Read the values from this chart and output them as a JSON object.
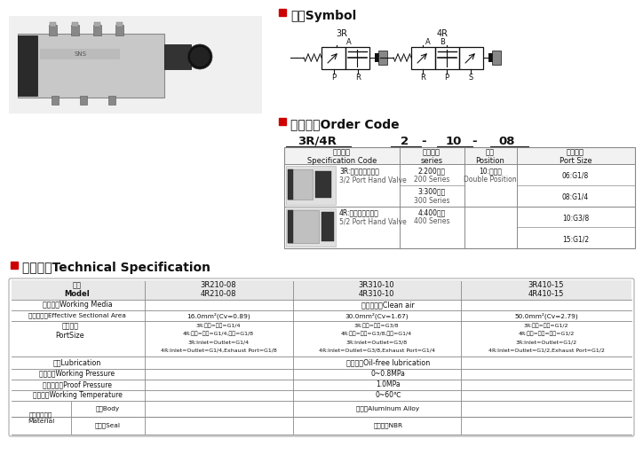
{
  "bg_color": "#ffffff",
  "red_color": "#cc0000",
  "border_color": "#aaaaaa",
  "line_color": "#888888",
  "header_bg": "#e8e8e8",
  "title_symbol": "符号Symbol",
  "title_order": "订货型号Order Code",
  "title_spec": "技术参数Technical Specification",
  "order_label": "3R/4R",
  "order_n1": "2",
  "order_n2": "10",
  "order_n3": "08",
  "oh1": "规格代号\nSpecification Code",
  "oh2": "系列代号\nseries",
  "oh3": "位数\nPosition",
  "oh4": "接管口径\nPort Size",
  "r1_cn": "3R:二位三通手拉阀",
  "r1_en": "3/2 Port Hand Valve",
  "r1_s1": "2:200系列",
  "r1_s1e": "200 Series",
  "r1_s2": "3:300系列",
  "r1_s2e": "300 Series",
  "r1_pos_cn": "10:双位置",
  "r1_pos_en": "Double Position",
  "r1_ports": [
    "06:G1/8",
    "08:G1/4",
    "10:G3/8",
    "15:G1/2"
  ],
  "r2_cn": "4R:二位五通手拉阀",
  "r2_en": "5/2 Port Hand Valve",
  "r2_s1": "4:400系列",
  "r2_s1e": "400 Series",
  "sym_3r": "3R",
  "sym_4r": "4R",
  "sym_A": "A",
  "sym_A2": "A",
  "sym_B": "B",
  "sym_P": "P",
  "sym_R": "R",
  "sym_R2": "R",
  "sym_P2": "P",
  "sym_S": "S",
  "spec_h0": "型号\nModel",
  "spec_h1": "3R210-08\n4R210-08",
  "spec_h2": "3R310-10\n4R310-10",
  "spec_h3": "3R410-15\n4R410-15",
  "wm_label": "工作介质Working Media",
  "wm_val": "清净的空气Clean air",
  "ea_label": "有效截面积Effective Sectional Area",
  "ea_v1": "16.0mm²(Cv=0.89)",
  "ea_v2": "30.0mm²(Cv=1.67)",
  "ea_v3": "50.0mm²(Cv=2.79)",
  "ps_cn": "接管口径",
  "ps_en": "PortSize",
  "ps_c1l1": "3R:进气=出气=G1/4",
  "ps_c1l2": "4R:进气=出气=G1/4,排气=G1/8",
  "ps_c1l3": "3R:Inlet=Outlet=G1/4",
  "ps_c1l4": "4R:Inlet=Outlet=G1/4,Exhaust Port=G1/8",
  "ps_c2l1": "3R:进气=出气=G3/8",
  "ps_c2l2": "4R:进气=出气=G3/8,排气=G1/4",
  "ps_c2l3": "3R:Inlet=Outlet=G3/8",
  "ps_c2l4": "4R:Inlet=Outlet=G3/8,Exhaust Port=G1/4",
  "ps_c3l1": "3R:进气=出气=G1/2",
  "ps_c3l2": "4R:进气=出气=排气=G1/2",
  "ps_c3l3": "3R:Inlet=Outlet=G1/2",
  "ps_c3l4": "4R:Inlet=Outlet=G1/2,Exhaust Port=G1/2",
  "lub_label": "润滑Lubrication",
  "lub_val": "无油润滑Oil-free lubrication",
  "wp_label": "使用压力Working Pressure",
  "wp_val": "0~0.8MPa",
  "pp_label": "最大耗压力Proof Pressure",
  "pp_val": "1.0MPa",
  "wt_label": "工作温度Working Temperature",
  "wt_val": "0~60℃",
  "mat_label": "主要配件材质\nMaterial",
  "body_label": "本体Body",
  "body_val": "铝合金Aluminum Alloy",
  "seal_label": "密封件Seal",
  "seal_val": "丁晴橡胶NBR"
}
